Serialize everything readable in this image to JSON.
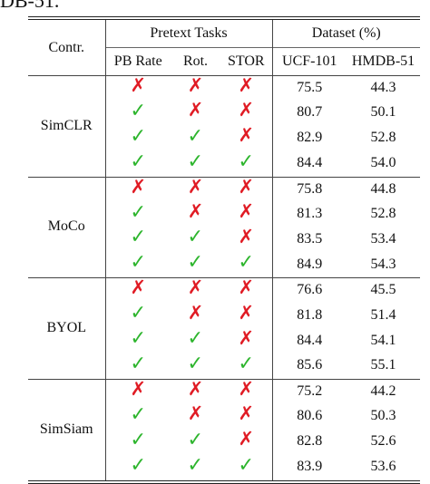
{
  "caption_fragment": "DB-51.",
  "header": {
    "contr": "Contr.",
    "pretext_group": "Pretext Tasks",
    "dataset_group": "Dataset (%)",
    "columns": [
      "PB Rate",
      "Rot.",
      "STOR",
      "UCF-101",
      "HMDB-51"
    ]
  },
  "marks": {
    "check": "✓",
    "cross": "✗"
  },
  "groups": [
    {
      "name": "SimCLR",
      "rows": [
        {
          "pb": false,
          "rot": false,
          "stor": false,
          "ucf": "75.5",
          "hmdb": "44.3",
          "bold": false
        },
        {
          "pb": true,
          "rot": false,
          "stor": false,
          "ucf": "80.7",
          "hmdb": "50.1",
          "bold": false
        },
        {
          "pb": true,
          "rot": true,
          "stor": false,
          "ucf": "82.9",
          "hmdb": "52.8",
          "bold": false
        },
        {
          "pb": true,
          "rot": true,
          "stor": true,
          "ucf": "84.4",
          "hmdb": "54.0",
          "bold": false
        }
      ]
    },
    {
      "name": "MoCo",
      "rows": [
        {
          "pb": false,
          "rot": false,
          "stor": false,
          "ucf": "75.8",
          "hmdb": "44.8",
          "bold": false
        },
        {
          "pb": true,
          "rot": false,
          "stor": false,
          "ucf": "81.3",
          "hmdb": "52.8",
          "bold": false
        },
        {
          "pb": true,
          "rot": true,
          "stor": false,
          "ucf": "83.5",
          "hmdb": "53.4",
          "bold": false
        },
        {
          "pb": true,
          "rot": true,
          "stor": true,
          "ucf": "84.9",
          "hmdb": "54.3",
          "bold": false
        }
      ]
    },
    {
      "name": "BYOL",
      "rows": [
        {
          "pb": false,
          "rot": false,
          "stor": false,
          "ucf": "76.6",
          "hmdb": "45.5",
          "bold": false
        },
        {
          "pb": true,
          "rot": false,
          "stor": false,
          "ucf": "81.8",
          "hmdb": "51.4",
          "bold": false
        },
        {
          "pb": true,
          "rot": true,
          "stor": false,
          "ucf": "84.4",
          "hmdb": "54.1",
          "bold": false
        },
        {
          "pb": true,
          "rot": true,
          "stor": true,
          "ucf": "85.6",
          "hmdb": "55.1",
          "bold": true
        }
      ]
    },
    {
      "name": "SimSiam",
      "rows": [
        {
          "pb": false,
          "rot": false,
          "stor": false,
          "ucf": "75.2",
          "hmdb": "44.2",
          "bold": false
        },
        {
          "pb": true,
          "rot": false,
          "stor": false,
          "ucf": "80.6",
          "hmdb": "50.3",
          "bold": false
        },
        {
          "pb": true,
          "rot": true,
          "stor": false,
          "ucf": "82.8",
          "hmdb": "52.6",
          "bold": false
        },
        {
          "pb": true,
          "rot": true,
          "stor": true,
          "ucf": "83.9",
          "hmdb": "53.6",
          "bold": false
        }
      ]
    }
  ],
  "colors": {
    "check": "#2db52d",
    "cross": "#e01b24",
    "rule": "#222222"
  }
}
